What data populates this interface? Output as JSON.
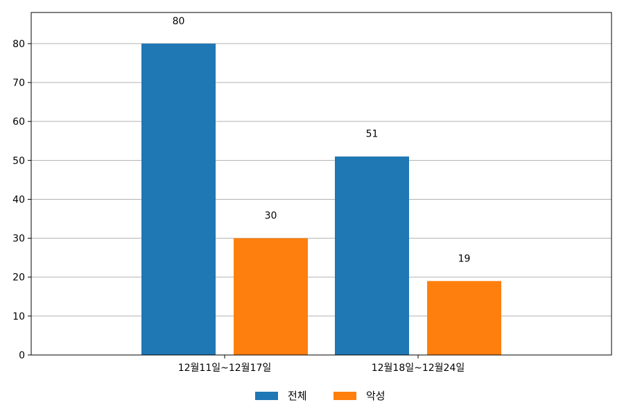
{
  "chart_data": {
    "type": "bar",
    "categories": [
      "12월11일~12월17일",
      "12월18일~12월24일"
    ],
    "series": [
      {
        "name": "전체",
        "values": [
          80,
          51
        ],
        "color": "#1f77b4"
      },
      {
        "name": "악성",
        "values": [
          30,
          19
        ],
        "color": "#ff7f0e"
      }
    ],
    "title": "",
    "xlabel": "",
    "ylabel": "",
    "ylim": [
      0,
      88
    ],
    "yticks": [
      0,
      10,
      20,
      30,
      40,
      50,
      60,
      70,
      80
    ],
    "grid": "horizontal",
    "legend_position": "bottom-center",
    "data_labels": true
  }
}
